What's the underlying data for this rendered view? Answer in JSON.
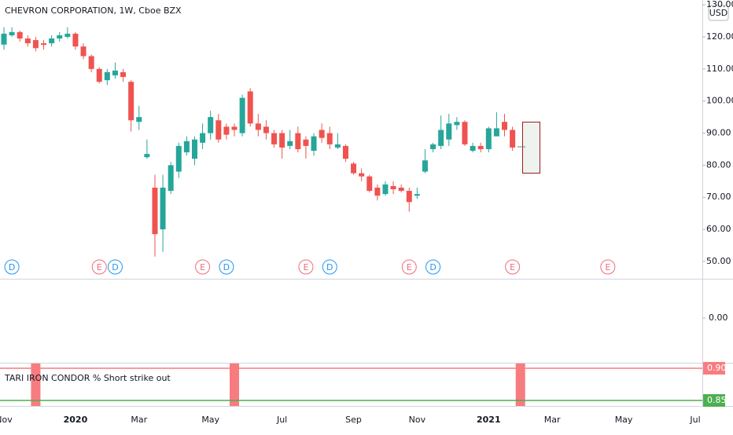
{
  "chart_data": {
    "type": "candlestick",
    "title": "CHEVRON CORPORATION, 1W, Cboe BZX",
    "currency": "USD",
    "categories": [
      "Nov",
      null,
      null,
      null,
      null,
      null,
      null,
      null,
      null,
      "2020",
      null,
      null,
      null,
      null,
      null,
      null,
      null,
      "Mar",
      null,
      null,
      null,
      null,
      null,
      null,
      null,
      null,
      "May",
      null,
      null,
      null,
      null,
      null,
      null,
      null,
      null,
      "Jul",
      null,
      null,
      null,
      null,
      null,
      null,
      null,
      null,
      "Sep",
      null,
      null,
      null,
      null,
      null,
      null,
      null,
      "Nov",
      null,
      null,
      null,
      null,
      null,
      null,
      null,
      null,
      "2021",
      null,
      null,
      null,
      null,
      null,
      null,
      null,
      "Mar",
      null,
      null,
      null,
      null,
      null,
      null,
      null,
      null,
      "May",
      null,
      null,
      null,
      null,
      null,
      null,
      null,
      null,
      "Jul"
    ],
    "open": [
      117.6,
      120.5,
      121.5,
      119.5,
      119,
      118,
      118,
      119.5,
      120,
      121,
      117,
      114,
      110,
      106.5,
      108,
      109,
      106,
      93.5,
      82.5,
      73,
      60,
      72,
      78,
      84,
      82,
      87,
      90,
      94,
      92,
      92,
      90,
      103,
      93,
      92,
      90,
      90,
      86,
      90,
      88,
      84.5,
      91,
      90,
      85.5,
      86,
      80.5,
      77.5,
      76.5,
      73,
      71,
      73.5,
      73,
      72,
      70.5,
      78,
      85,
      86,
      88,
      92.5,
      93.5,
      84.5,
      86,
      85,
      89,
      93.5,
      91,
      null,
      null,
      null,
      null,
      null,
      null,
      null,
      null,
      null,
      null,
      null,
      null,
      null,
      null,
      null,
      null,
      null,
      null,
      null,
      null,
      null,
      null,
      null
    ],
    "high": [
      123,
      123,
      122,
      120.5,
      120,
      119,
      120.5,
      121.5,
      123,
      121.5,
      118,
      114.5,
      110.5,
      110,
      112,
      110,
      106.5,
      98.5,
      88,
      77,
      77,
      81,
      87,
      89,
      89,
      93,
      97,
      96,
      93,
      93,
      102,
      104,
      96,
      94,
      91,
      91,
      91,
      92,
      89,
      90,
      93,
      92,
      90,
      86.5,
      81,
      79,
      77,
      74,
      75,
      75,
      74,
      73,
      73,
      85,
      87,
      95.5,
      96,
      95,
      94,
      87,
      87,
      92,
      96.5,
      96,
      92,
      null,
      null,
      null,
      null,
      null,
      null,
      null,
      null,
      null,
      null,
      null,
      null,
      null,
      null,
      null,
      null,
      null,
      null,
      null,
      null,
      null,
      null,
      null
    ],
    "low": [
      116,
      120,
      118.5,
      117,
      115.5,
      116,
      117,
      118.5,
      119.5,
      116,
      113,
      109,
      105.5,
      105,
      107,
      106,
      90.5,
      91,
      82,
      51.5,
      53,
      71,
      76,
      83,
      80,
      85,
      88,
      87,
      88,
      89,
      89,
      92,
      89,
      88,
      85.5,
      82,
      85,
      84,
      82,
      83,
      87,
      85,
      85,
      81,
      77,
      75,
      71.5,
      69,
      70.5,
      71,
      71.5,
      65.5,
      69.5,
      77.5,
      84,
      85,
      86,
      91,
      86,
      84,
      84,
      84,
      89,
      89,
      84.5,
      null,
      null,
      null,
      null,
      null,
      null,
      null,
      null,
      null,
      null,
      null,
      null,
      null,
      null,
      null,
      null,
      null,
      null,
      null,
      null,
      null,
      null,
      null
    ],
    "close": [
      121,
      121.5,
      119.5,
      118,
      116.5,
      117.5,
      119.5,
      120.5,
      121,
      117,
      114,
      110,
      106,
      109,
      109.5,
      107.5,
      94,
      95,
      83.5,
      58.5,
      73,
      80,
      86,
      87.5,
      88,
      90,
      95,
      88,
      89.5,
      91,
      101,
      93,
      91,
      90,
      86.5,
      85.5,
      87.5,
      85,
      86,
      89,
      88.5,
      86.5,
      86.5,
      82,
      77.5,
      76.5,
      72,
      70.5,
      74,
      72.5,
      72,
      68.5,
      71,
      81.5,
      86.5,
      91,
      93,
      93.5,
      86.5,
      86,
      85,
      91.5,
      91.5,
      91,
      85.5,
      null,
      null,
      null,
      null,
      null,
      null,
      null,
      null,
      null,
      null,
      null,
      null,
      null,
      null,
      null,
      null,
      null,
      null,
      null,
      null,
      null,
      null,
      null
    ],
    "up_color": "#26a69a",
    "down_color": "#ef5350",
    "ylim": [
      44.6,
      131.5
    ],
    "yticks": [
      {
        "value": 50,
        "label": "50.00"
      },
      {
        "value": 60,
        "label": "60.00"
      },
      {
        "value": 70,
        "label": "70.00"
      },
      {
        "value": 80,
        "label": "80.00"
      },
      {
        "value": 90,
        "label": "90.00"
      },
      {
        "value": 100,
        "label": "100.00"
      },
      {
        "value": 110,
        "label": "110.00"
      },
      {
        "value": 120,
        "label": "120.00"
      },
      {
        "value": 130,
        "label": "130.00"
      }
    ],
    "events": [
      null,
      "D",
      null,
      null,
      null,
      null,
      null,
      null,
      null,
      null,
      null,
      null,
      "E",
      null,
      "D",
      null,
      null,
      null,
      null,
      null,
      null,
      null,
      null,
      null,
      null,
      "E",
      null,
      null,
      "D",
      null,
      null,
      null,
      null,
      null,
      null,
      null,
      null,
      null,
      "E",
      null,
      null,
      "D",
      null,
      null,
      null,
      null,
      null,
      null,
      null,
      null,
      null,
      "E",
      null,
      null,
      "D",
      null,
      null,
      null,
      null,
      null,
      null,
      null,
      null,
      null,
      "E",
      null,
      null,
      null,
      null,
      null,
      null,
      null,
      null,
      null,
      null,
      null,
      "E",
      null,
      null,
      null,
      null,
      null,
      null,
      null,
      null,
      null,
      null,
      null
    ],
    "event_colors": {
      "D": "#2196f3",
      "E": "#ef6b7b"
    },
    "pane2": {
      "ylim": [
        -1.14,
        1
      ],
      "yticks": [
        {
          "value": 0,
          "label": "0.00"
        }
      ]
    },
    "indicator": {
      "title": "TARI IRON CONDOR % Short strike out",
      "ylim": [
        0.8415,
        0.9085
      ],
      "yticks": [
        {
          "value": 0.9,
          "label": "0.90"
        },
        {
          "value": 0.85,
          "label": "0.85"
        }
      ],
      "tick_colors": [
        "#f77c80",
        "#4caf50"
      ],
      "highlight": [
        false,
        false,
        false,
        false,
        true,
        false,
        false,
        false,
        false,
        false,
        false,
        false,
        false,
        false,
        false,
        false,
        false,
        false,
        false,
        false,
        false,
        false,
        false,
        false,
        false,
        false,
        false,
        false,
        false,
        true,
        false,
        false,
        false,
        false,
        false,
        false,
        false,
        false,
        false,
        false,
        false,
        false,
        false,
        false,
        false,
        false,
        false,
        false,
        false,
        false,
        false,
        false,
        false,
        false,
        false,
        false,
        false,
        false,
        false,
        false,
        false,
        false,
        false,
        false,
        false,
        true,
        false,
        false,
        false,
        false,
        false,
        false,
        false,
        false,
        false,
        false,
        false,
        false,
        false,
        false,
        false,
        false,
        false,
        false,
        false,
        false,
        false,
        false
      ],
      "highlight_color": "#f77c80"
    }
  }
}
